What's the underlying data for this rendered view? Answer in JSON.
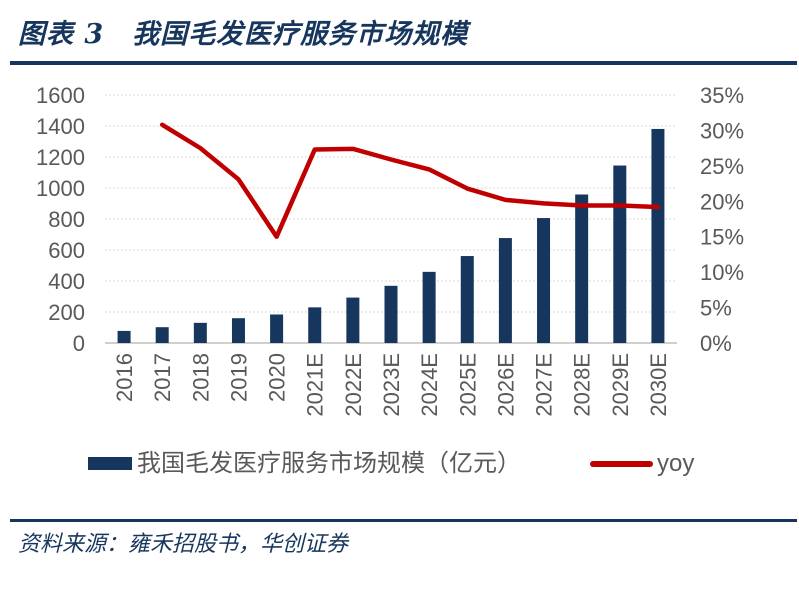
{
  "header": {
    "title": "图表 3　我国毛发医疗服务市场规模"
  },
  "legend": {
    "bar_label": "我国毛发医疗服务市场规模（亿元）",
    "line_label": "yoy"
  },
  "footer": {
    "source": "资料来源：雍禾招股书，华创证券"
  },
  "colors": {
    "navy": "#17365D",
    "red": "#C00000",
    "gridline": "#D9D9D9",
    "axis_line": "#BFBFBF",
    "tick_label": "#595959",
    "title": "#17365D"
  },
  "chart_data": {
    "type": "bar",
    "subtype": "bar+line combo, dual axis",
    "categories": [
      "2016",
      "2017",
      "2018",
      "2019",
      "2020",
      "2021E",
      "2022E",
      "2023E",
      "2024E",
      "2025E",
      "2026E",
      "2027E",
      "2028E",
      "2029E",
      "2030E"
    ],
    "series": [
      {
        "name": "我国毛发医疗服务市场规模（亿元）",
        "type": "bar",
        "axis": "left",
        "color": "#17365D",
        "values": [
          78,
          102,
          130,
          160,
          184,
          230,
          293,
          369,
          459,
          561,
          677,
          806,
          958,
          1145,
          1381
        ]
      },
      {
        "name": "yoy",
        "type": "line",
        "axis": "right",
        "color": "#C00000",
        "values": [
          null,
          30.8,
          27.5,
          23.1,
          15.0,
          27.3,
          27.4,
          25.9,
          24.5,
          21.8,
          20.2,
          19.7,
          19.4,
          19.4,
          19.2
        ]
      }
    ],
    "left_axis": {
      "min": 0,
      "max": 1600,
      "step": 200,
      "tick_labels": [
        "0",
        "200",
        "400",
        "600",
        "800",
        "1000",
        "1200",
        "1400",
        "1600"
      ]
    },
    "right_axis": {
      "min": 0,
      "max": 35,
      "step": 5,
      "unit": "%",
      "tick_labels": [
        "0%",
        "5%",
        "10%",
        "15%",
        "20%",
        "25%",
        "30%",
        "35%"
      ]
    },
    "grid": true,
    "legend_position": "bottom",
    "title": "我国毛发医疗服务市场规模",
    "xlabel": "",
    "ylabel_left": "亿元",
    "ylabel_right": "yoy %"
  }
}
